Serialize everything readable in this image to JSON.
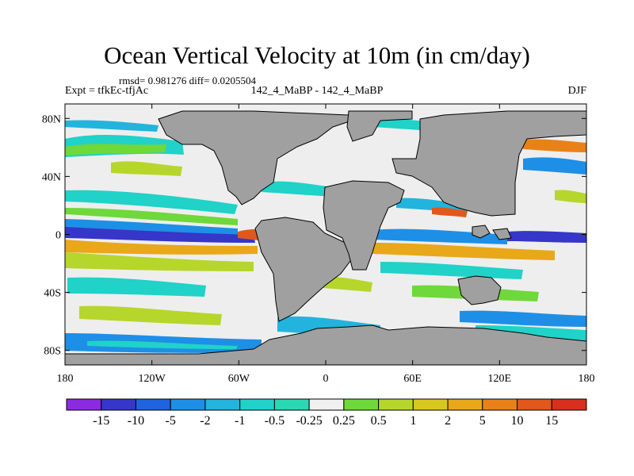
{
  "title": "Ocean Vertical Velocity at 10m (in cm/day)",
  "stats_text": "rmsd= 0.981276 diff= 0.0205504",
  "left_label": "Expt = tfkEc-tfjAc",
  "center_label": "142_4_MaBP - 142_4_MaBP",
  "right_label": "DJF",
  "map": {
    "land_color": "#a0a0a0",
    "ocean_background": "#eeeeee",
    "lon_ticks": [
      {
        "value": -180,
        "label": "180"
      },
      {
        "value": -120,
        "label": "120W"
      },
      {
        "value": -60,
        "label": "60W"
      },
      {
        "value": 0,
        "label": "0"
      },
      {
        "value": 60,
        "label": "60E"
      },
      {
        "value": 120,
        "label": "120E"
      },
      {
        "value": 180,
        "label": "180"
      }
    ],
    "lat_ticks": [
      {
        "value": 80,
        "label": "80N"
      },
      {
        "value": 40,
        "label": "40N"
      },
      {
        "value": 0,
        "label": "0"
      },
      {
        "value": -40,
        "label": "40S"
      },
      {
        "value": -80,
        "label": "80S"
      }
    ]
  },
  "colorbar": {
    "colors": [
      "#8a2be2",
      "#3636c8",
      "#1f63e0",
      "#1e8fe6",
      "#22b4dc",
      "#20d2c8",
      "#f0f0f0",
      "#6fd83a",
      "#b6d62c",
      "#d8c81e",
      "#e8a81a",
      "#e88218",
      "#e0581c",
      "#d8301e"
    ],
    "labels": [
      "-15",
      "-10",
      "-5",
      "-2",
      "-1",
      "-0.5",
      "-0.25",
      "0.25",
      "0.5",
      "1",
      "2",
      "5",
      "10",
      "15"
    ]
  }
}
